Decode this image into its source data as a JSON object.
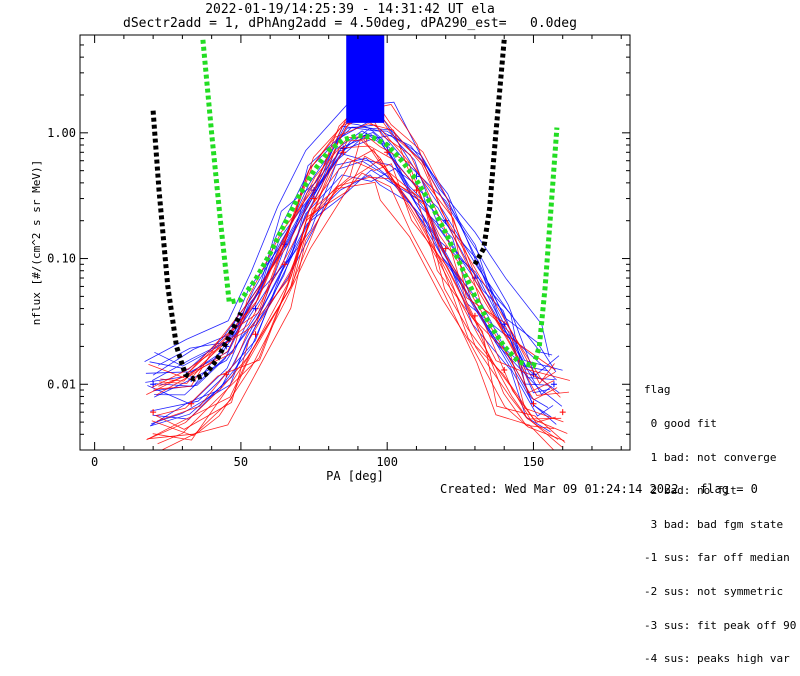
{
  "title_line1": "2022-01-19/14:25:39 - 14:31:42 UT ela",
  "title_line2": "dSectr2add = 1, dPhAng2add = 4.50deg, dPA290_est=   0.0deg",
  "footer": {
    "created": "Created: Wed Mar 09 01:24:14 2022",
    "flag": "flag = 0"
  },
  "legend": {
    "title": "flag",
    "items": [
      " 0 good fit",
      " 1 bad: not converge",
      " 2 bad: no fit",
      " 3 bad: bad fgm state",
      "-1 sus: far off median",
      "-2 sus: not symmetric",
      "-3 sus: fit peak off 90",
      "-4 sus: peaks high var"
    ]
  },
  "chart_data": {
    "type": "line",
    "xlabel": "PA [deg]",
    "ylabel": "nflux [#/(cm^2 s sr MeV)]",
    "xlim": [
      -5,
      183
    ],
    "ylim": [
      0.003,
      6.0
    ],
    "yscale": "log",
    "xticks": [
      0,
      50,
      100,
      150
    ],
    "xtick_labels": [
      "0",
      "50",
      "100",
      "150"
    ],
    "yticks": [
      0.01,
      0.1,
      1.0
    ],
    "ytick_labels": [
      "0.01",
      "0.10",
      "1.00"
    ],
    "colors": {
      "para": "#ff0000",
      "perp": "#0000ff",
      "fit_green": "#22dd22",
      "fit_black": "#000000"
    },
    "series": [
      {
        "color": "#0000ff",
        "x": [
          20,
          33,
          45,
          55,
          65,
          75,
          85,
          93,
          100,
          110,
          120,
          130,
          140,
          150,
          157
        ],
        "y": [
          0.01,
          0.011,
          0.02,
          0.04,
          0.13,
          0.35,
          0.75,
          0.95,
          0.8,
          0.45,
          0.2,
          0.07,
          0.03,
          0.012,
          0.01
        ]
      },
      {
        "color": "#ff0000",
        "x": [
          20,
          33,
          45,
          55,
          65,
          75,
          85,
          93,
          100,
          110,
          120,
          130,
          140,
          150,
          160
        ],
        "y": [
          0.006,
          0.007,
          0.012,
          0.025,
          0.09,
          0.3,
          0.7,
          0.9,
          0.7,
          0.35,
          0.12,
          0.035,
          0.013,
          0.007,
          0.006
        ]
      },
      {
        "color": "#22dd22",
        "x": [
          37,
          40,
          43,
          46,
          50,
          55,
          60,
          65,
          70,
          75,
          80,
          85,
          90,
          95,
          100,
          105,
          110,
          115,
          120,
          125,
          130,
          135,
          140,
          145,
          150,
          152,
          154,
          156,
          158
        ],
        "y": [
          5.5,
          1.0,
          0.2,
          0.045,
          0.047,
          0.068,
          0.11,
          0.19,
          0.32,
          0.5,
          0.72,
          0.88,
          0.95,
          0.92,
          0.8,
          0.6,
          0.42,
          0.27,
          0.16,
          0.09,
          0.05,
          0.03,
          0.02,
          0.015,
          0.014,
          0.02,
          0.06,
          0.25,
          1.1
        ]
      },
      {
        "color": "#000000",
        "x": [
          20,
          22,
          25,
          28,
          31,
          34,
          38,
          42,
          46,
          50
        ],
        "y": [
          1.5,
          0.35,
          0.06,
          0.02,
          0.012,
          0.011,
          0.012,
          0.016,
          0.024,
          0.037
        ]
      },
      {
        "color": "#000000",
        "x": [
          130,
          133,
          135,
          137,
          139,
          140
        ],
        "y": [
          0.09,
          0.12,
          0.25,
          0.9,
          3.0,
          5.5
        ]
      }
    ]
  }
}
